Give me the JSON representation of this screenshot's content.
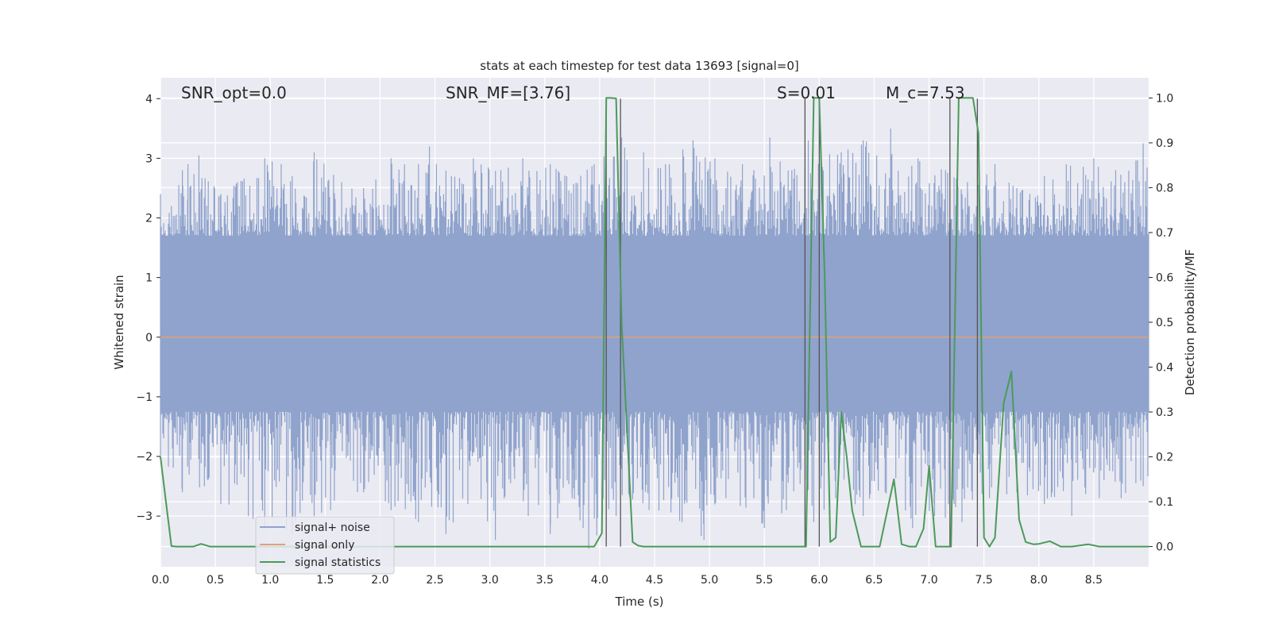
{
  "chart_data": {
    "type": "line",
    "title": "stats at each timestep for test data 13693 [signal=0]",
    "xlabel": "Time (s)",
    "ylabel_left": "Whitened strain",
    "ylabel_right": "Detection probability/MF",
    "xlim": [
      0,
      9.0
    ],
    "ylim_left": [
      -3.85,
      4.35
    ],
    "ylim_right": [
      -0.045,
      1.045
    ],
    "x_ticks": [
      "0.0",
      "0.5",
      "1.0",
      "1.5",
      "2.0",
      "2.5",
      "3.0",
      "3.5",
      "4.0",
      "4.5",
      "5.0",
      "5.5",
      "6.0",
      "6.5",
      "7.0",
      "7.5",
      "8.0",
      "8.5"
    ],
    "y_left_ticks": [
      "4",
      "3",
      "2",
      "1",
      "0",
      "−1",
      "−2",
      "−3"
    ],
    "y_right_ticks": [
      "1.0",
      "0.9",
      "0.8",
      "0.7",
      "0.6",
      "0.5",
      "0.4",
      "0.3",
      "0.2",
      "0.1",
      "0.0"
    ],
    "grid": true,
    "annotations": [
      {
        "text": "SNR_opt=0.0",
        "x": 0.2,
        "y": 4.1
      },
      {
        "text": "SNR_MF=[3.76]",
        "x": 2.6,
        "y": 4.1
      },
      {
        "text": "S=0.01",
        "x": 5.6,
        "y": 4.1
      },
      {
        "text": "M_c=7.53",
        "x": 6.6,
        "y": 4.1
      }
    ],
    "legend": {
      "location": "lower-left",
      "entries": [
        {
          "label": "signal+ noise",
          "color": "#8fa3cc"
        },
        {
          "label": "signal only",
          "color": "#e2a07a"
        },
        {
          "label": "signal statistics",
          "color": "#4c9a5a"
        }
      ]
    },
    "series": [
      {
        "name": "signal+ noise",
        "axis": "left",
        "style": "dense noise band",
        "color": "#8fa3cc",
        "core_range": [
          -1.25,
          1.7
        ],
        "peaks_x": [
          0.0,
          0.1,
          0.2,
          0.25,
          0.35,
          0.55,
          0.7,
          0.95,
          1.1,
          1.2,
          1.4,
          1.65,
          1.85,
          2.1,
          2.35,
          2.45,
          2.65,
          2.85,
          3.1,
          3.3,
          3.55,
          3.7,
          3.95,
          4.2,
          4.4,
          4.6,
          4.85,
          5.05,
          5.3,
          5.55,
          5.75,
          5.9,
          6.2,
          6.4,
          6.65,
          6.9,
          7.15,
          7.35,
          7.6,
          7.8,
          8.05,
          8.25,
          8.5,
          8.7,
          8.95
        ],
        "peaks_y": [
          2.4,
          2.2,
          2.8,
          2.9,
          3.05,
          2.4,
          2.6,
          3.0,
          2.9,
          2.7,
          3.1,
          2.6,
          2.5,
          3.0,
          2.9,
          3.2,
          2.7,
          3.0,
          2.8,
          3.0,
          2.9,
          2.7,
          2.9,
          3.35,
          3.1,
          2.9,
          3.3,
          3.0,
          2.9,
          3.35,
          2.8,
          3.3,
          3.1,
          3.3,
          3.5,
          3.0,
          2.8,
          2.6,
          2.9,
          2.5,
          2.7,
          2.9,
          3.0,
          2.8,
          3.25
        ],
        "troughs_x": [
          0.0,
          0.2,
          0.4,
          0.55,
          0.8,
          0.95,
          1.2,
          1.4,
          1.55,
          1.85,
          2.1,
          2.35,
          2.6,
          2.8,
          3.05,
          3.35,
          3.55,
          3.75,
          3.9,
          4.15,
          4.45,
          4.75,
          4.95,
          5.15,
          5.5,
          5.7,
          5.95,
          6.15,
          6.4,
          6.6,
          6.85,
          7.05,
          7.3,
          7.55,
          7.8,
          8.05,
          8.3,
          8.55,
          8.75,
          8.95
        ],
        "troughs_y": [
          -2.0,
          -2.6,
          -2.5,
          -2.8,
          -3.0,
          -3.2,
          -3.3,
          -3.0,
          -2.9,
          -2.6,
          -2.9,
          -3.1,
          -3.3,
          -2.8,
          -3.4,
          -3.0,
          -3.3,
          -2.7,
          -3.55,
          -3.0,
          -2.9,
          -3.1,
          -3.4,
          -2.7,
          -3.2,
          -2.9,
          -3.1,
          -2.7,
          -3.0,
          -2.6,
          -3.2,
          -3.0,
          -3.1,
          -2.7,
          -2.6,
          -2.8,
          -3.0,
          -2.7,
          -2.7,
          -2.5
        ]
      },
      {
        "name": "signal only",
        "axis": "left",
        "color": "#e2a07a",
        "x": [
          0,
          9.0
        ],
        "y": [
          0,
          0
        ]
      },
      {
        "name": "signal statistics",
        "axis": "right",
        "color": "#4c9a5a",
        "x": [
          0.0,
          0.05,
          0.1,
          0.15,
          0.2,
          0.3,
          0.37,
          0.45,
          0.5,
          1.0,
          2.0,
          3.0,
          3.95,
          4.02,
          4.06,
          4.1,
          4.15,
          4.2,
          4.3,
          4.35,
          4.4,
          4.5,
          5.0,
          5.5,
          5.83,
          5.88,
          5.95,
          6.0,
          6.05,
          6.1,
          6.15,
          6.2,
          6.25,
          6.3,
          6.38,
          6.45,
          6.55,
          6.68,
          6.75,
          6.82,
          6.88,
          6.95,
          7.0,
          7.06,
          7.12,
          7.2,
          7.27,
          7.3,
          7.4,
          7.45,
          7.5,
          7.55,
          7.6,
          7.68,
          7.75,
          7.82,
          7.88,
          7.95,
          8.0,
          8.1,
          8.2,
          8.3,
          8.45,
          8.55,
          8.7,
          9.0
        ],
        "y": [
          0.2,
          0.1,
          0.001,
          0.0,
          0.0,
          0.0,
          0.006,
          0.0,
          0.0,
          0.0,
          0.0,
          0.0,
          0.0,
          0.03,
          1.0,
          1.0,
          0.999,
          0.5,
          0.01,
          0.002,
          0.0,
          0.0,
          0.0,
          0.0,
          0.0,
          0.0,
          1.0,
          1.0,
          0.6,
          0.01,
          0.02,
          0.3,
          0.2,
          0.08,
          0.0,
          0.0,
          0.0,
          0.15,
          0.005,
          0.0,
          0.0,
          0.04,
          0.18,
          0.0,
          0.0,
          0.0,
          1.0,
          1.0,
          1.0,
          0.92,
          0.02,
          0.0,
          0.02,
          0.32,
          0.39,
          0.06,
          0.01,
          0.005,
          0.006,
          0.012,
          0.0,
          0.0,
          0.005,
          0.0,
          0.0,
          0.0
        ]
      }
    ],
    "event_markers": [
      {
        "x": 4.06,
        "axis": "left",
        "top": 4.0
      },
      {
        "x": 4.19,
        "axis": "left",
        "top": 4.0
      },
      {
        "x": 5.87,
        "axis": "left",
        "top": 4.0
      },
      {
        "x": 6.0,
        "axis": "left",
        "top": 4.0
      },
      {
        "x": 7.19,
        "axis": "left",
        "top": 4.0
      },
      {
        "x": 7.44,
        "axis": "left",
        "top": 4.0
      }
    ]
  }
}
